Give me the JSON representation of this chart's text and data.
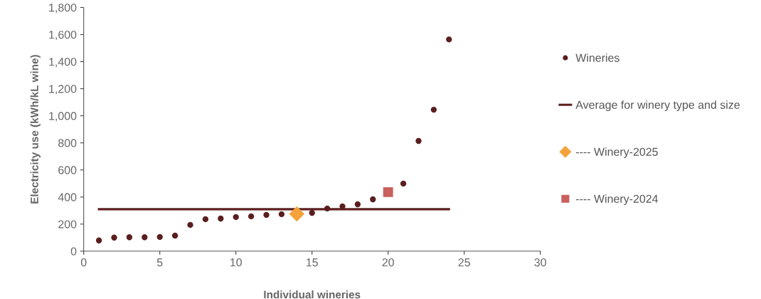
{
  "chart_data": {
    "type": "scatter",
    "xlabel": "Individual wineries",
    "ylabel": "Electricity use (kWh/kL wine)",
    "xlim": [
      0,
      30
    ],
    "xticks": [
      0,
      5,
      10,
      15,
      20,
      25,
      30
    ],
    "ylim": [
      0,
      1800
    ],
    "yticks": [
      0,
      {
        "value": 200,
        "label": "200"
      },
      {
        "value": 400,
        "label": "400"
      },
      {
        "value": 600,
        "label": "600"
      },
      {
        "value": 800,
        "label": "800"
      },
      {
        "value": 1000,
        "label": "1,000"
      },
      {
        "value": 1200,
        "label": "1,200"
      },
      {
        "value": 1400,
        "label": "1,400"
      },
      {
        "value": 1600,
        "label": "1,600"
      },
      {
        "value": 1800,
        "label": "1,800"
      }
    ],
    "grid": false,
    "legend": "right",
    "series": [
      {
        "name": "Wineries",
        "type": "scatter",
        "marker": "circle",
        "color": "#5a1e1e",
        "x": [
          1,
          2,
          3,
          4,
          5,
          6,
          7,
          8,
          9,
          10,
          11,
          12,
          13,
          15,
          16,
          17,
          18,
          19,
          21,
          22,
          23,
          24
        ],
        "values": [
          79,
          100,
          103,
          103,
          105,
          115,
          194,
          236,
          241,
          252,
          257,
          268,
          273,
          283,
          315,
          331,
          346,
          383,
          499,
          814,
          1045,
          1564
        ]
      },
      {
        "name": "Average for winery type and size",
        "type": "line",
        "marker": "none",
        "line_style": "solid",
        "color": "#5c1f1f",
        "x": [
          1,
          24
        ],
        "values": [
          310,
          310
        ]
      },
      {
        "name": "---- Winery-2025",
        "type": "scatter",
        "marker": "diamond",
        "color": "#f4a23c",
        "x": [
          14
        ],
        "values": [
          275
        ]
      },
      {
        "name": "---- Winery-2024",
        "type": "scatter",
        "marker": "square",
        "color": "#c9605c",
        "x": [
          20
        ],
        "values": [
          436
        ]
      }
    ]
  }
}
